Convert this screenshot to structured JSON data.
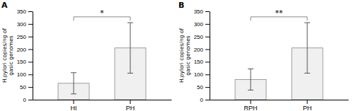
{
  "chart_data": [
    {
      "type": "bar",
      "title": "A",
      "categories": [
        "HI",
        "PH"
      ],
      "values": [
        65,
        205
      ],
      "errors": [
        42,
        100
      ],
      "color": "#f0f0f0",
      "ylabel": "H.pylori copies/ng of\ngasic genomes",
      "ylim": [
        0,
        350
      ],
      "yticks": [
        0,
        50,
        100,
        150,
        200,
        250,
        300,
        350
      ],
      "significance": {
        "label": "*",
        "y": 328,
        "drop": 15
      }
    },
    {
      "type": "bar",
      "title": "B",
      "categories": [
        "RPH",
        "PH"
      ],
      "values": [
        80,
        205
      ],
      "errors": [
        42,
        100
      ],
      "color": "#f0f0f0",
      "ylabel": "H.pylori copies/ng of\ngasic genomes",
      "ylim": [
        0,
        350
      ],
      "yticks": [
        0,
        50,
        100,
        150,
        200,
        250,
        300,
        350
      ],
      "significance": {
        "label": "**",
        "y": 328,
        "drop": 15
      }
    }
  ]
}
